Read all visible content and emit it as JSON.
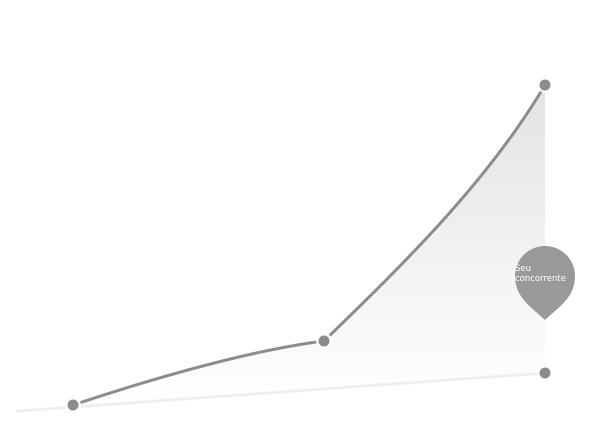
{
  "chart_data": {
    "type": "area",
    "title": "",
    "xlabel": "",
    "ylabel": "",
    "grid": false,
    "series": [
      {
        "x": [
          0,
          1,
          2
        ],
        "values": [
          1,
          2.4,
          8
        ],
        "color": "#8c8c8c",
        "fill": "#e8e8e8"
      },
      {
        "x": [
          0,
          2
        ],
        "values": [
          1,
          1.7
        ],
        "color": "#efefef"
      }
    ],
    "annotation": {
      "label": "Seu concorrente",
      "color": "#999999",
      "text_color": "#ffffff"
    }
  }
}
